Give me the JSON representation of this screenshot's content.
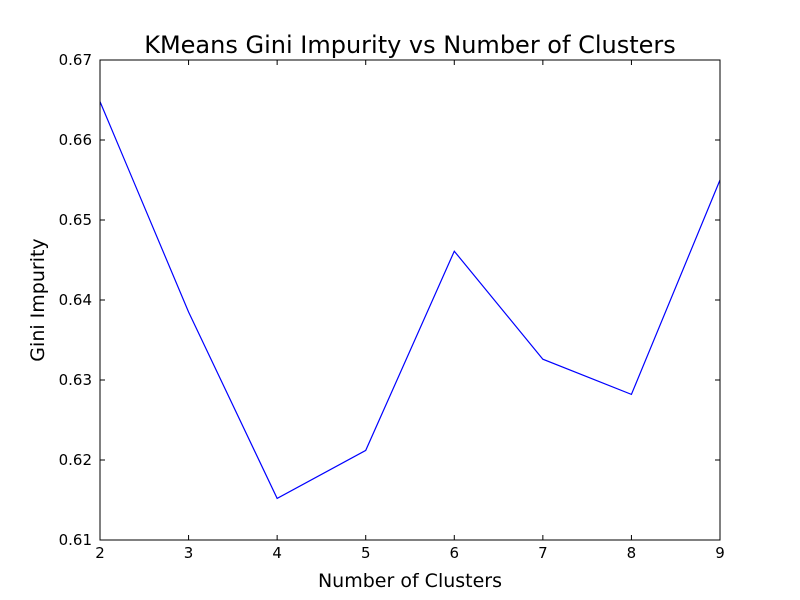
{
  "chart_data": {
    "type": "line",
    "title": "KMeans Gini Impurity vs Number of Clusters",
    "xlabel": "Number of Clusters",
    "ylabel": "Gini Impurity",
    "x": [
      2,
      3,
      4,
      5,
      6,
      7,
      8,
      9
    ],
    "series": [
      {
        "values": [
          0.6648,
          0.6385,
          0.6152,
          0.6212,
          0.6461,
          0.6326,
          0.6282,
          0.655
        ],
        "color": "#0000ff"
      }
    ],
    "xlim": [
      2,
      9
    ],
    "ylim": [
      0.61,
      0.67
    ],
    "xticks": [
      2,
      3,
      4,
      5,
      6,
      7,
      8,
      9
    ],
    "xtick_labels": [
      "2",
      "3",
      "4",
      "5",
      "6",
      "7",
      "8",
      "9"
    ],
    "yticks": [
      0.61,
      0.62,
      0.63,
      0.64,
      0.65,
      0.66,
      0.67
    ],
    "ytick_labels": [
      "0.61",
      "0.62",
      "0.63",
      "0.64",
      "0.65",
      "0.66",
      "0.67"
    ],
    "grid": false,
    "legend": false
  }
}
